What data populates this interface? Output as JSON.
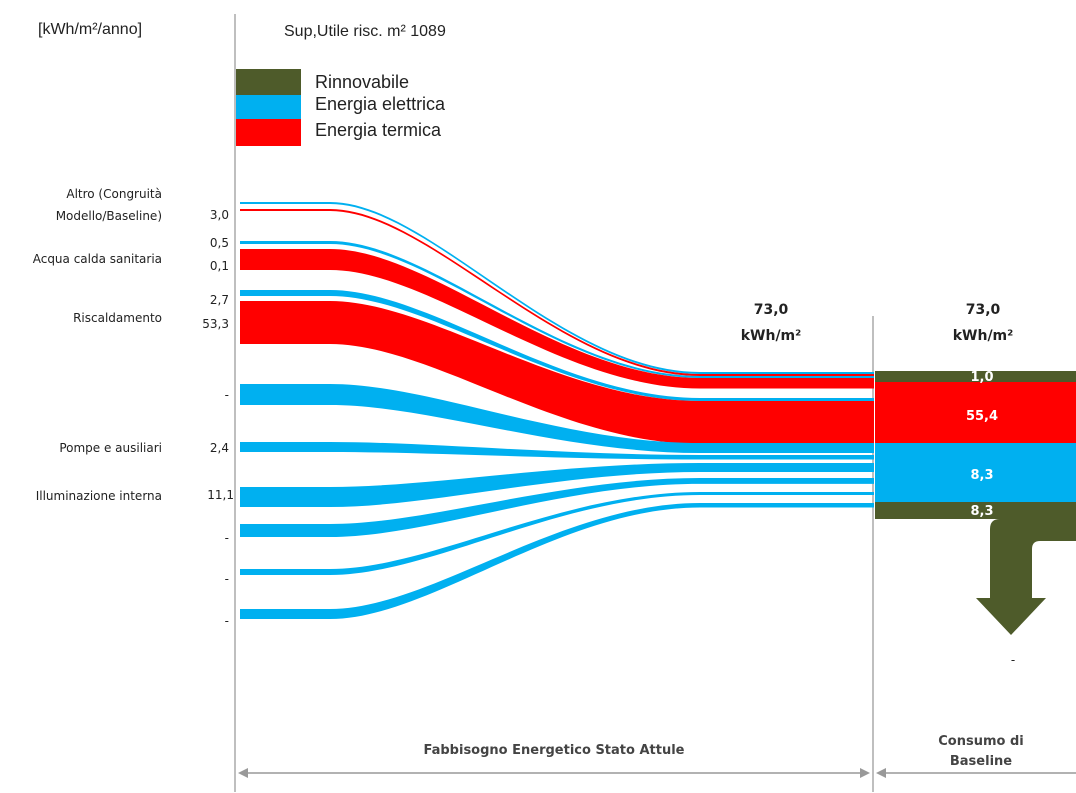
{
  "header": {
    "unit": "[kWh/m²/anno]",
    "surface": "Sup,Utile risc. m² 1089"
  },
  "legend": [
    {
      "label": "Rinnovabile",
      "color": "#4e5b2a"
    },
    {
      "label": "Energia elettrica",
      "color": "#00b0f0"
    },
    {
      "label": "Energia termica",
      "color": "#ff0000"
    }
  ],
  "chart_data": {
    "type": "sankey",
    "unit": "kWh/m²/anno",
    "rows": [
      {
        "label_lines": [
          "Altro (Congruità",
          "Modello/Baseline)"
        ],
        "values": [
          "3,0"
        ]
      },
      {
        "label_lines": [
          "Acqua calda sanitaria"
        ],
        "values": [
          "0,5",
          "0,1"
        ]
      },
      {
        "label_lines": [
          "Riscaldamento"
        ],
        "values": [
          "2,7",
          "53,3"
        ]
      },
      {
        "label_lines": [],
        "values": [
          "-"
        ]
      },
      {
        "label_lines": [
          "Pompe e ausiliari"
        ],
        "values": [
          "2,4"
        ]
      },
      {
        "label_lines": [
          "Illuminazione interna"
        ],
        "values": [
          "11,1"
        ]
      },
      {
        "label_lines": [],
        "values": [
          "-"
        ]
      },
      {
        "label_lines": [],
        "values": [
          "-"
        ]
      },
      {
        "label_lines": [],
        "values": [
          "-"
        ]
      }
    ],
    "flows": [
      {
        "carrier": "Energia elettrica",
        "value": 0.5,
        "color": "#00b0f0"
      },
      {
        "carrier": "Energia termica",
        "value": 0.1,
        "color": "#ff0000"
      },
      {
        "carrier": "Energia elettrica",
        "value": 0.5,
        "color": "#00b0f0"
      },
      {
        "carrier": "Energia termica",
        "value": 3.0,
        "color": "#ff0000"
      },
      {
        "carrier": "Energia elettrica",
        "value": 0.5,
        "color": "#00b0f0"
      },
      {
        "carrier": "Energia termica",
        "value": 53.3,
        "color": "#ff0000"
      },
      {
        "carrier": "Energia elettrica",
        "value": 2.7,
        "color": "#00b0f0"
      },
      {
        "carrier": "Energia elettrica",
        "value": 2.4,
        "color": "#00b0f0"
      },
      {
        "carrier": "Energia elettrica",
        "value": 11.1,
        "color": "#00b0f0"
      },
      {
        "carrier": "Energia elettrica",
        "value": 2.0,
        "color": "#00b0f0"
      },
      {
        "carrier": "Energia elettrica",
        "value": 1.0,
        "color": "#00b0f0"
      },
      {
        "carrier": "Energia elettrica",
        "value": 1.0,
        "color": "#00b0f0"
      }
    ],
    "total_need": {
      "value": "73,0",
      "unit": "kWh/m²"
    },
    "total_baseline": {
      "value": "73,0",
      "unit": "kWh/m²"
    },
    "baseline_segments": [
      {
        "carrier": "Rinnovabile",
        "value": 1.0,
        "text": "1,0",
        "color": "#4e5b2a"
      },
      {
        "carrier": "Energia termica",
        "value": 55.4,
        "text": "55,4",
        "color": "#ff0000"
      },
      {
        "carrier": "Energia elettrica",
        "value": 8.3,
        "text": "8,3",
        "color": "#00b0f0"
      },
      {
        "carrier": "Rinnovabile",
        "value": 8.3,
        "text": "8,3",
        "color": "#4e5b2a"
      }
    ],
    "export_value": "-"
  },
  "footer": {
    "left": "Fabbisogno Energetico Stato Attule",
    "right_lines": [
      "Consumo di",
      "Baseline"
    ]
  }
}
